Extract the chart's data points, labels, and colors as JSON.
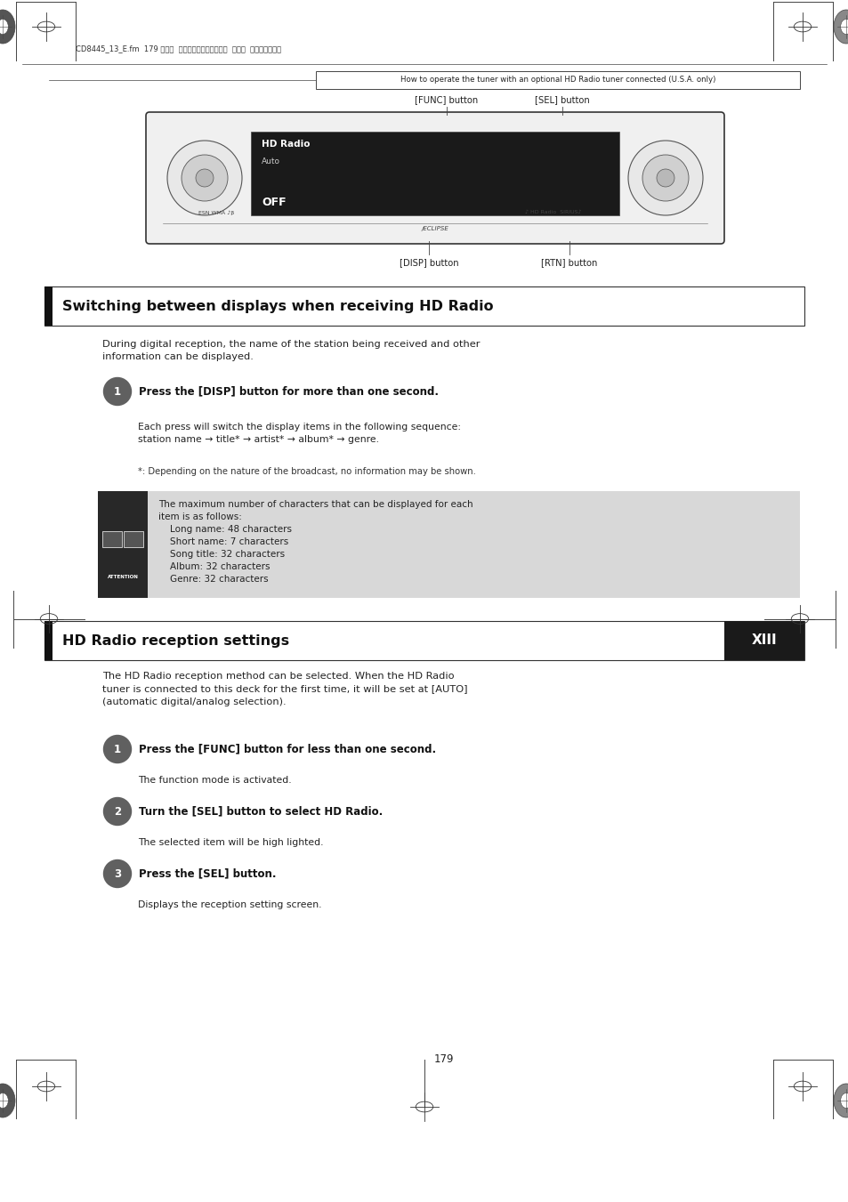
{
  "page_width": 9.54,
  "page_height": 13.51,
  "bg_color": "#ffffff",
  "header_file_text": "CD8445_13_E.fm  179 ページ  ２００４年１２月１３日  月曜日  午後８時２９分",
  "header_box_text": "How to operate the tuner with an optional HD Radio tuner connected (U.S.A. only)",
  "func_button_label": "[FUNC] button",
  "sel_button_label": "[SEL] button",
  "disp_button_label": "[DISP] button",
  "rtn_button_label": "[RTN] button",
  "section1_title": "Switching between displays when receiving HD Radio",
  "section1_intro": "During digital reception, the name of the station being received and other\ninformation can be displayed.",
  "step1_text": "Press the [DISP] button for more than one second.",
  "step1_body1": "Each press will switch the display items in the following sequence:\nstation name → title* → artist* → album* → genre.",
  "step1_body2": "*: Depending on the nature of the broadcast, no information may be shown.",
  "attention_text": "The maximum number of characters that can be displayed for each\nitem is as follows:\n    Long name: 48 characters\n    Short name: 7 characters\n    Song title: 32 characters\n    Album: 32 characters\n    Genre: 32 characters",
  "section2_title": "HD Radio reception settings",
  "xiii_label": "XIII",
  "section2_intro": "The HD Radio reception method can be selected. When the HD Radio\ntuner is connected to this deck for the first time, it will be set at [AUTO]\n(automatic digital/analog selection).",
  "step2_1_text": "Press the [FUNC] button for less than one second.",
  "step2_1_body": "The function mode is activated.",
  "step2_2_text": "Turn the [SEL] button to select HD Radio.",
  "step2_2_body": "The selected item will be high lighted.",
  "step2_3_text": "Press the [SEL] button.",
  "step2_3_body": "Displays the reception setting screen.",
  "page_number": "179",
  "attention_bg": "#d8d8d8",
  "attention_dark": "#282828",
  "step_bg": "#606060",
  "xiii_bg": "#1a1a1a",
  "xiii_text_color": "#ffffff",
  "section_bar_color": "#000000"
}
